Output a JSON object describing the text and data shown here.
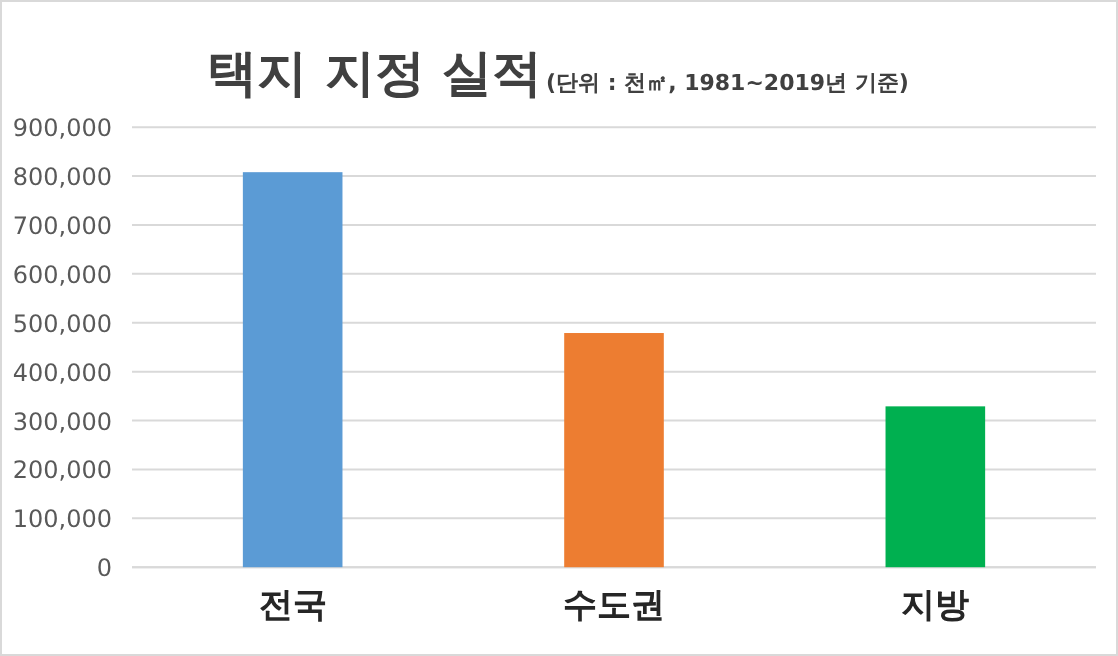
{
  "chart_data": {
    "type": "bar",
    "title": "택지 지정 실적",
    "subtitle": "(단위 : 천㎡, 1981~2019년 기준)",
    "categories": [
      "전국",
      "수도권",
      "지방"
    ],
    "values": [
      808000,
      479000,
      329000
    ],
    "colors": [
      "#5b9bd5",
      "#ed7d31",
      "#00b050"
    ],
    "ylim": [
      0,
      900000
    ],
    "yticks": [
      0,
      {
        "value": 100000,
        "label": "100,000"
      },
      {
        "value": 200000,
        "label": "200,000"
      },
      {
        "value": 300000,
        "label": "300,000"
      },
      {
        "value": 400000,
        "label": "400,000"
      },
      {
        "value": 500000,
        "label": "500,000"
      },
      {
        "value": 600000,
        "label": "600,000"
      },
      {
        "value": 700000,
        "label": "700,000"
      },
      {
        "value": 800000,
        "label": "800,000"
      },
      {
        "value": 900000,
        "label": "900,000"
      }
    ],
    "grid": "y"
  }
}
